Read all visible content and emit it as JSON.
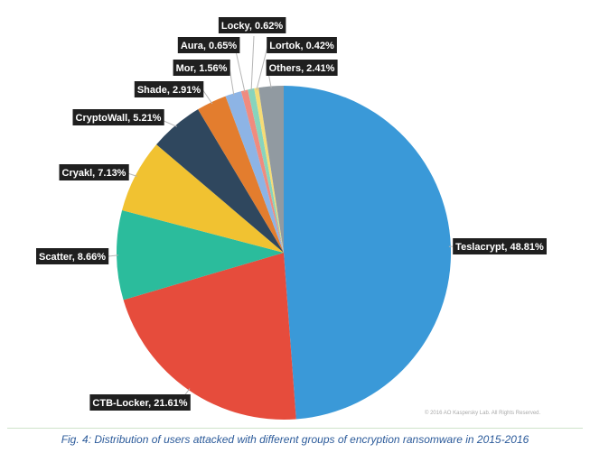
{
  "chart_data": {
    "type": "pie",
    "start": "12 o'clock",
    "direction": "clockwise",
    "slices": [
      {
        "label": "Teslacrypt",
        "value": 48.81,
        "display": "Teslacrypt, 48.81%",
        "color": "#3a99d8"
      },
      {
        "label": "CTB-Locker",
        "value": 21.61,
        "display": "CTB-Locker, 21.61%",
        "color": "#e64c3c"
      },
      {
        "label": "Scatter",
        "value": 8.66,
        "display": "Scatter, 8.66%",
        "color": "#2bbc9c"
      },
      {
        "label": "Cryakl",
        "value": 7.13,
        "display": "Cryakl, 7.13%",
        "color": "#f1c231"
      },
      {
        "label": "CryptoWall",
        "value": 5.21,
        "display": "CryptoWall, 5.21%",
        "color": "#2f475e"
      },
      {
        "label": "Shade",
        "value": 2.91,
        "display": "Shade, 2.91%",
        "color": "#e37d2e"
      },
      {
        "label": "Mor",
        "value": 1.56,
        "display": "Mor, 1.56%",
        "color": "#8db4e5"
      },
      {
        "label": "Aura",
        "value": 0.65,
        "display": "Aura, 0.65%",
        "color": "#f08b7e"
      },
      {
        "label": "Locky",
        "value": 0.62,
        "display": "Locky, 0.62%",
        "color": "#88d4bd"
      },
      {
        "label": "Lortok",
        "value": 0.42,
        "display": "Lortok, 0.42%",
        "color": "#f6dc76"
      },
      {
        "label": "Others",
        "value": 2.41,
        "display": "Others, 2.41%",
        "color": "#919aa1"
      }
    ]
  },
  "copyright": "© 2016 AO Kaspersky Lab. All Rights Reserved.",
  "caption": "Fig. 4: Distribution of users attacked with different groups of encryption ransomware in 2015-2016",
  "colors": {
    "label_bg": "#1f1f1f",
    "label_text": "#ffffff",
    "leader": "#b5b5b5",
    "caption": "#2b5a9a"
  }
}
